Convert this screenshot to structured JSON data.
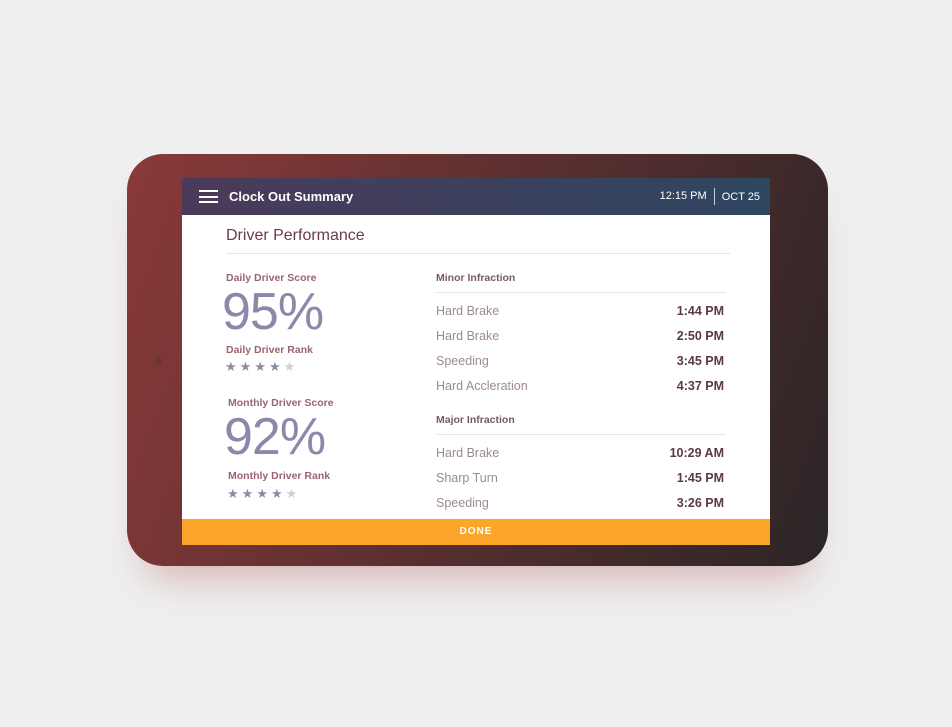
{
  "header": {
    "title": "Clock Out Summary",
    "time": "12:15 PM",
    "date": "OCT 25"
  },
  "page_title": "Driver Performance",
  "daily": {
    "score_label": "Daily Driver Score",
    "score": "95%",
    "rank_label": "Daily Driver Rank",
    "rank_stars": 4,
    "rank_max": 5
  },
  "monthly": {
    "score_label": "Monthly Driver Score",
    "score": "92%",
    "rank_label": "Monthly Driver Rank",
    "rank_stars": 4,
    "rank_max": 5
  },
  "minor": {
    "title": "Minor Infraction",
    "items": [
      {
        "name": "Hard Brake",
        "time": "1:44 PM"
      },
      {
        "name": "Hard Brake",
        "time": "2:50 PM"
      },
      {
        "name": "Speeding",
        "time": "3:45 PM"
      },
      {
        "name": "Hard Accleration",
        "time": "4:37 PM"
      }
    ]
  },
  "major": {
    "title": "Major Infraction",
    "items": [
      {
        "name": "Hard Brake",
        "time": "10:29 AM"
      },
      {
        "name": "Sharp Turn",
        "time": "1:45 PM"
      },
      {
        "name": "Speeding",
        "time": "3:26 PM"
      }
    ]
  },
  "done_label": "DONE",
  "colors": {
    "accent": "#fba62a",
    "header": "#3a4060"
  }
}
